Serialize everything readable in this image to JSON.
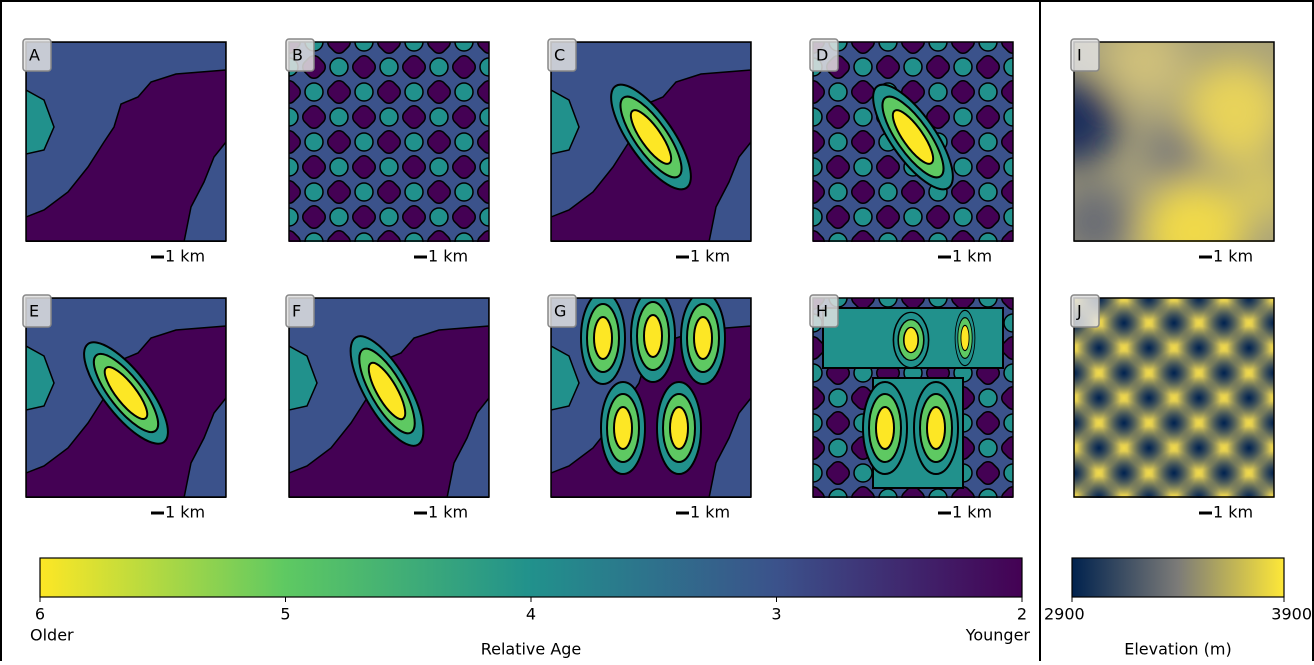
{
  "panels": [
    {
      "label": "A"
    },
    {
      "label": "B"
    },
    {
      "label": "C"
    },
    {
      "label": "D"
    },
    {
      "label": "E"
    },
    {
      "label": "F"
    },
    {
      "label": "G"
    },
    {
      "label": "H"
    },
    {
      "label": "I"
    },
    {
      "label": "J"
    }
  ],
  "scale_bar_label": "1 km",
  "colorbars": [
    {
      "title": "Relative Age",
      "lim": [
        6,
        2
      ],
      "ticks": [
        6,
        5,
        4,
        3,
        2
      ],
      "left_label": "Older",
      "right_label": "Younger"
    },
    {
      "title": "Elevation (m)",
      "lim": [
        2900,
        3900
      ],
      "ticks": [
        2900,
        3900
      ]
    }
  ]
}
